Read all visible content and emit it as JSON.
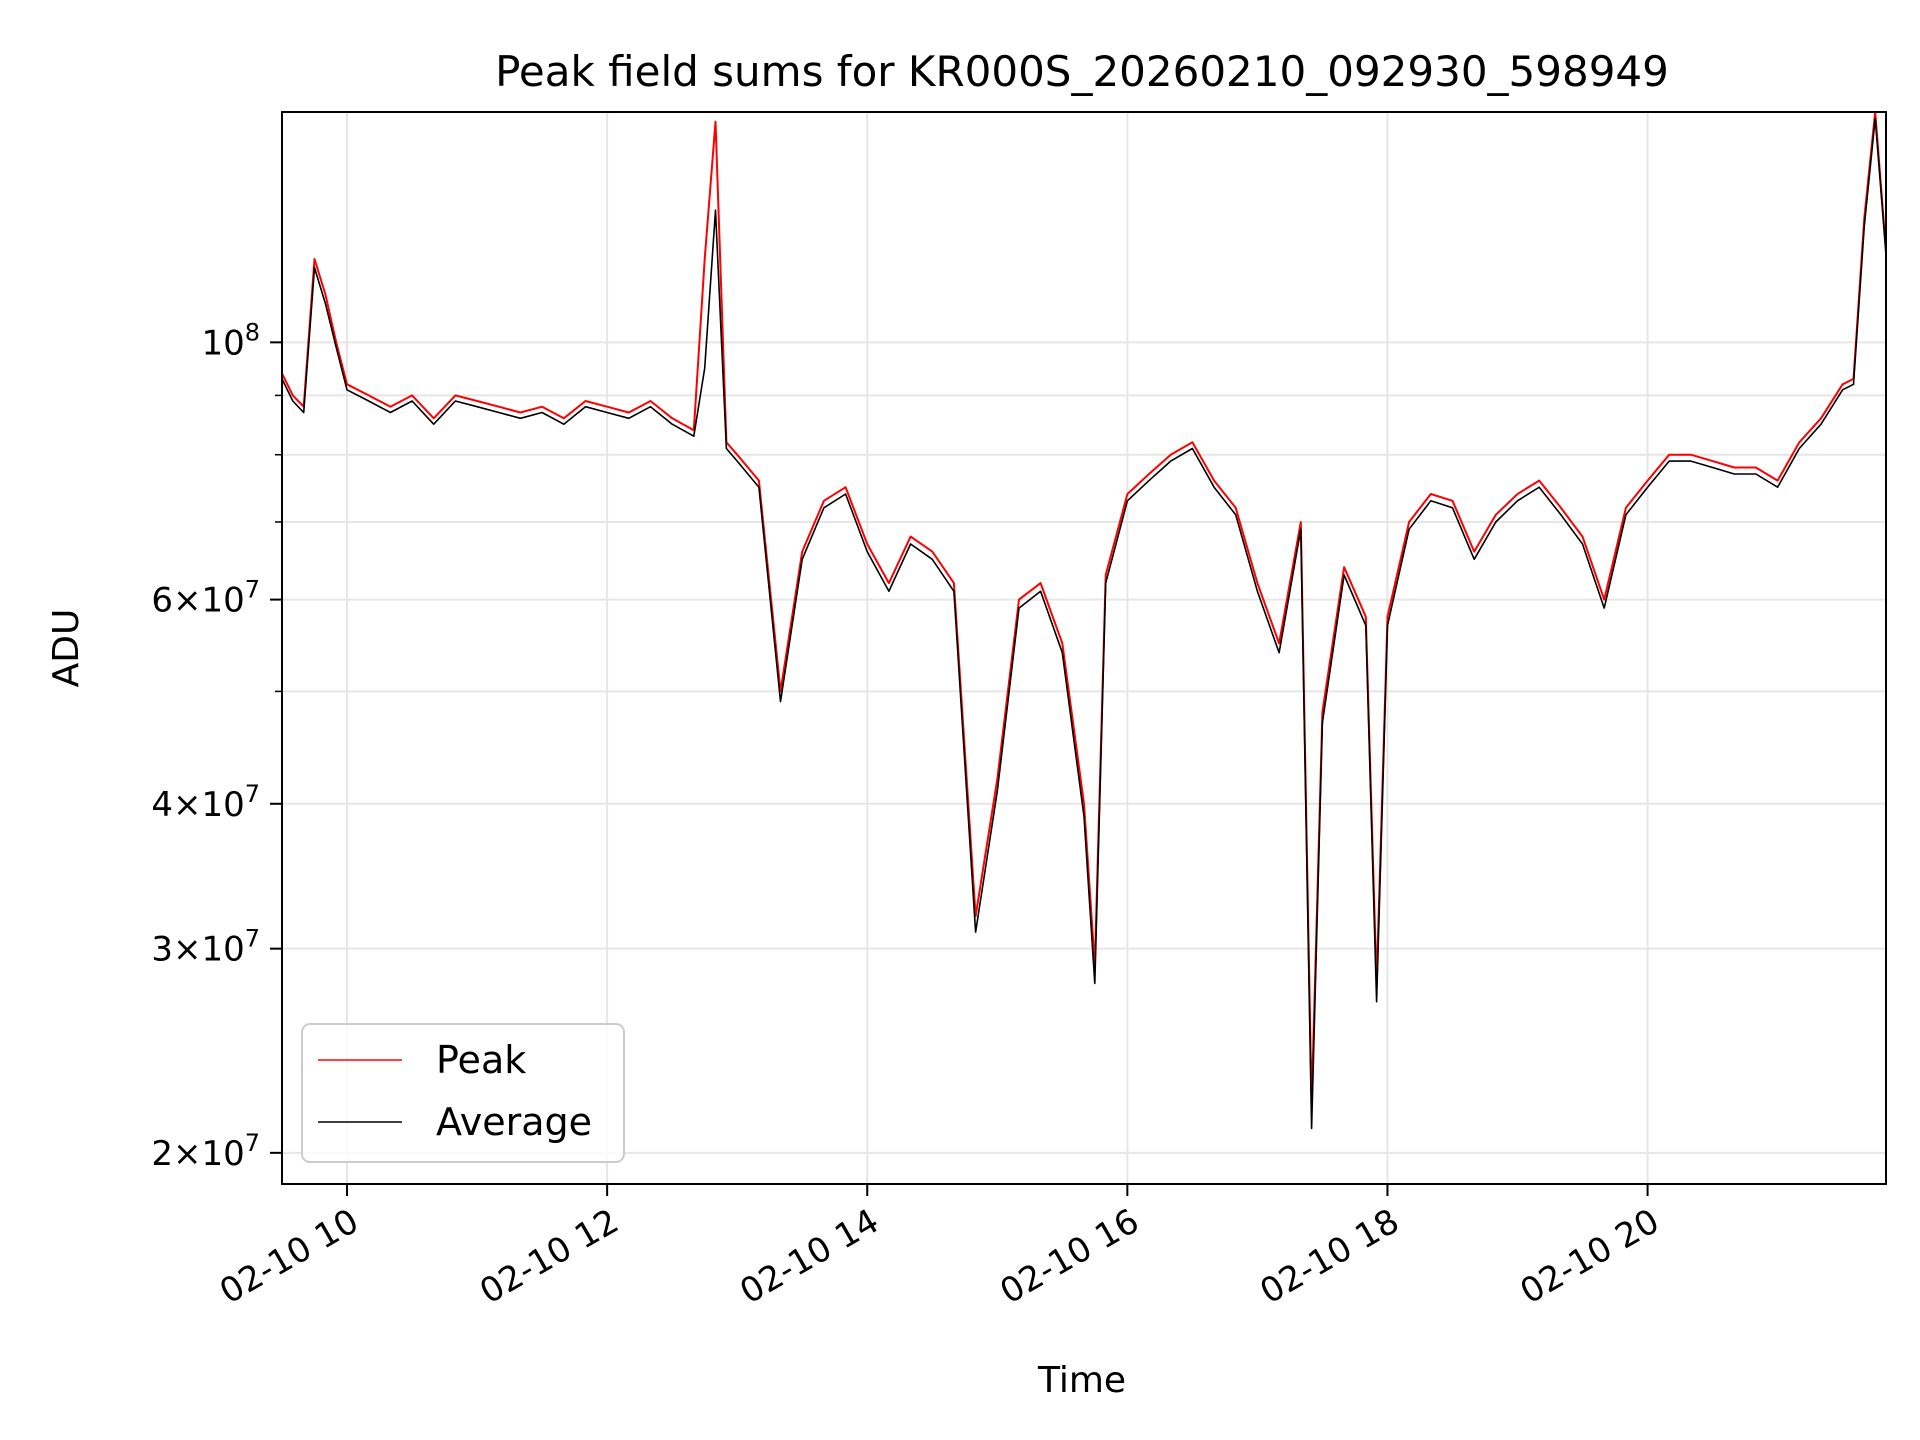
{
  "chart_data": {
    "type": "line",
    "title": "Peak field sums for KR000S_20260210_092930_598949",
    "xlabel": "Time",
    "ylabel": "ADU",
    "x_range": [
      "2026-02-10 09:30",
      "2026-02-10 21:50"
    ],
    "ylim": [
      18800000,
      158000000
    ],
    "yscale": "log",
    "grid": true,
    "legend_position": "lower-left",
    "x_ticks": [
      {
        "value": "2026-02-10 10:00",
        "label": "02-10 10"
      },
      {
        "value": "2026-02-10 12:00",
        "label": "02-10 12"
      },
      {
        "value": "2026-02-10 14:00",
        "label": "02-10 14"
      },
      {
        "value": "2026-02-10 16:00",
        "label": "02-10 16"
      },
      {
        "value": "2026-02-10 18:00",
        "label": "02-10 18"
      },
      {
        "value": "2026-02-10 20:00",
        "label": "02-10 20"
      }
    ],
    "y_ticks_major": [
      {
        "value": 20000000,
        "base": "2",
        "exp": "7"
      },
      {
        "value": 30000000,
        "base": "3",
        "exp": "7"
      },
      {
        "value": 40000000,
        "base": "4",
        "exp": "7"
      },
      {
        "value": 60000000,
        "base": "6",
        "exp": "7"
      },
      {
        "value": 100000000,
        "base": "",
        "exp": "8"
      }
    ],
    "y_ticks_minor": [
      50000000,
      70000000,
      80000000,
      90000000
    ],
    "x": [
      "2026-02-10 09:30",
      "2026-02-10 09:35",
      "2026-02-10 09:40",
      "2026-02-10 09:45",
      "2026-02-10 09:50",
      "2026-02-10 09:55",
      "2026-02-10 10:00",
      "2026-02-10 10:10",
      "2026-02-10 10:20",
      "2026-02-10 10:30",
      "2026-02-10 10:40",
      "2026-02-10 10:50",
      "2026-02-10 11:00",
      "2026-02-10 11:10",
      "2026-02-10 11:20",
      "2026-02-10 11:30",
      "2026-02-10 11:40",
      "2026-02-10 11:50",
      "2026-02-10 12:00",
      "2026-02-10 12:10",
      "2026-02-10 12:20",
      "2026-02-10 12:30",
      "2026-02-10 12:40",
      "2026-02-10 12:45",
      "2026-02-10 12:50",
      "2026-02-10 12:55",
      "2026-02-10 13:00",
      "2026-02-10 13:10",
      "2026-02-10 13:20",
      "2026-02-10 13:30",
      "2026-02-10 13:40",
      "2026-02-10 13:50",
      "2026-02-10 14:00",
      "2026-02-10 14:10",
      "2026-02-10 14:20",
      "2026-02-10 14:30",
      "2026-02-10 14:40",
      "2026-02-10 14:50",
      "2026-02-10 15:00",
      "2026-02-10 15:10",
      "2026-02-10 15:20",
      "2026-02-10 15:30",
      "2026-02-10 15:40",
      "2026-02-10 15:45",
      "2026-02-10 15:50",
      "2026-02-10 16:00",
      "2026-02-10 16:10",
      "2026-02-10 16:20",
      "2026-02-10 16:30",
      "2026-02-10 16:40",
      "2026-02-10 16:50",
      "2026-02-10 17:00",
      "2026-02-10 17:10",
      "2026-02-10 17:20",
      "2026-02-10 17:25",
      "2026-02-10 17:30",
      "2026-02-10 17:40",
      "2026-02-10 17:50",
      "2026-02-10 17:55",
      "2026-02-10 18:00",
      "2026-02-10 18:10",
      "2026-02-10 18:20",
      "2026-02-10 18:30",
      "2026-02-10 18:40",
      "2026-02-10 18:50",
      "2026-02-10 19:00",
      "2026-02-10 19:10",
      "2026-02-10 19:20",
      "2026-02-10 19:30",
      "2026-02-10 19:40",
      "2026-02-10 19:50",
      "2026-02-10 20:00",
      "2026-02-10 20:10",
      "2026-02-10 20:20",
      "2026-02-10 20:30",
      "2026-02-10 20:40",
      "2026-02-10 20:50",
      "2026-02-10 21:00",
      "2026-02-10 21:10",
      "2026-02-10 21:20",
      "2026-02-10 21:30",
      "2026-02-10 21:35",
      "2026-02-10 21:40",
      "2026-02-10 21:45",
      "2026-02-10 21:50"
    ],
    "series": [
      {
        "name": "Peak",
        "color": "#ff0000",
        "values": [
          94000000,
          90000000,
          88000000,
          118000000,
          110000000,
          100000000,
          92000000,
          90000000,
          88000000,
          90000000,
          86000000,
          90000000,
          89000000,
          88000000,
          87000000,
          88000000,
          86000000,
          89000000,
          88000000,
          87000000,
          89000000,
          86000000,
          84000000,
          118000000,
          155000000,
          82000000,
          80000000,
          76000000,
          50000000,
          66000000,
          73000000,
          75000000,
          67000000,
          62000000,
          68000000,
          66000000,
          62000000,
          32000000,
          42000000,
          60000000,
          62000000,
          55000000,
          40000000,
          29000000,
          63000000,
          74000000,
          77000000,
          80000000,
          82000000,
          76000000,
          72000000,
          62000000,
          55000000,
          70000000,
          22000000,
          48000000,
          64000000,
          58000000,
          28000000,
          58000000,
          70000000,
          74000000,
          73000000,
          66000000,
          71000000,
          74000000,
          76000000,
          72000000,
          68000000,
          60000000,
          72000000,
          76000000,
          80000000,
          80000000,
          79000000,
          78000000,
          78000000,
          76000000,
          82000000,
          86000000,
          92000000,
          93000000,
          128000000,
          158000000,
          120000000
        ]
      },
      {
        "name": "Average",
        "color": "#000000",
        "values": [
          93000000,
          89000000,
          87000000,
          116000000,
          108000000,
          99000000,
          91000000,
          89000000,
          87000000,
          89000000,
          85000000,
          89000000,
          88000000,
          87000000,
          86000000,
          87000000,
          85000000,
          88000000,
          87000000,
          86000000,
          88000000,
          85000000,
          83000000,
          95000000,
          130000000,
          81000000,
          79000000,
          75000000,
          49000000,
          65000000,
          72000000,
          74000000,
          66000000,
          61000000,
          67000000,
          65000000,
          61000000,
          31000000,
          41000000,
          59000000,
          61000000,
          54000000,
          39000000,
          28000000,
          62000000,
          73000000,
          76000000,
          79000000,
          81000000,
          75000000,
          71000000,
          61000000,
          54000000,
          69000000,
          21000000,
          47000000,
          63000000,
          57000000,
          27000000,
          57000000,
          69000000,
          73000000,
          72000000,
          65000000,
          70000000,
          73000000,
          75000000,
          71000000,
          67000000,
          59000000,
          71000000,
          75000000,
          79000000,
          79000000,
          78000000,
          77000000,
          77000000,
          75000000,
          81000000,
          85000000,
          91000000,
          92000000,
          126000000,
          156000000,
          119000000
        ]
      }
    ]
  }
}
